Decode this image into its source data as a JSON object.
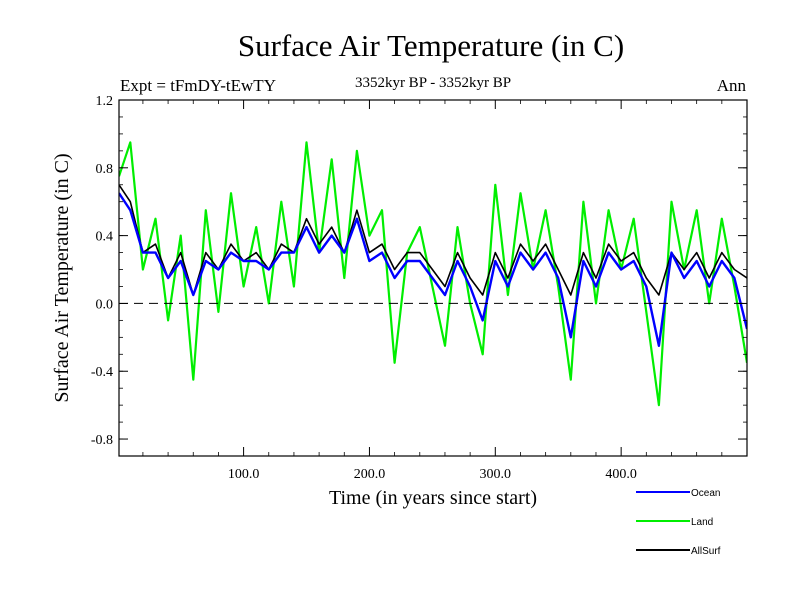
{
  "chart_data": {
    "type": "line",
    "title": "Surface Air Temperature (in C)",
    "subtitle_left": "Expt = tFmDY-tEwTY",
    "subtitle_center": "3352kyr BP - 3352kyr BP",
    "subtitle_right": "Ann",
    "xlabel": "Time (in years since start)",
    "ylabel": "Surface Air Temperature (in C)",
    "xlim": [
      1,
      500
    ],
    "ylim": [
      -0.9,
      1.2
    ],
    "x_ticks": [
      {
        "value": 100,
        "label": "100.0"
      },
      {
        "value": 200,
        "label": "200.0"
      },
      {
        "value": 300,
        "label": "300.0"
      },
      {
        "value": 400,
        "label": "400.0"
      }
    ],
    "y_ticks": [
      {
        "value": 1.2,
        "label": "1.2"
      },
      {
        "value": 0.8,
        "label": "0.8"
      },
      {
        "value": 0.4,
        "label": "0.4"
      },
      {
        "value": 0.0,
        "label": "0.0"
      },
      {
        "value": -0.4,
        "label": "-0.4"
      },
      {
        "value": -0.8,
        "label": "-0.8"
      }
    ],
    "reference_line": 0.0,
    "grid": false,
    "legend_position": "bottom-right",
    "series": [
      {
        "name": "Land",
        "color": "#00ee00",
        "x": [
          1,
          10,
          20,
          30,
          40,
          50,
          60,
          70,
          80,
          90,
          100,
          110,
          120,
          130,
          140,
          150,
          160,
          170,
          180,
          190,
          200,
          210,
          220,
          230,
          240,
          250,
          260,
          270,
          280,
          290,
          300,
          310,
          320,
          330,
          340,
          350,
          360,
          370,
          380,
          390,
          400,
          410,
          420,
          430,
          440,
          450,
          460,
          470,
          480,
          490,
          500
        ],
        "values": [
          0.75,
          0.95,
          0.2,
          0.5,
          -0.1,
          0.4,
          -0.45,
          0.55,
          -0.05,
          0.65,
          0.1,
          0.45,
          0.0,
          0.6,
          0.1,
          0.95,
          0.3,
          0.85,
          0.15,
          0.9,
          0.4,
          0.55,
          -0.35,
          0.3,
          0.45,
          0.1,
          -0.25,
          0.45,
          0.0,
          -0.3,
          0.7,
          0.05,
          0.65,
          0.2,
          0.55,
          0.1,
          -0.45,
          0.6,
          0.0,
          0.55,
          0.2,
          0.5,
          -0.05,
          -0.6,
          0.6,
          0.2,
          0.55,
          0.0,
          0.5,
          0.1,
          -0.35
        ]
      },
      {
        "name": "AllSurf",
        "color": "#000000",
        "x": [
          1,
          10,
          20,
          30,
          40,
          50,
          60,
          70,
          80,
          90,
          100,
          110,
          120,
          130,
          140,
          150,
          160,
          170,
          180,
          190,
          200,
          210,
          220,
          230,
          240,
          250,
          260,
          270,
          280,
          290,
          300,
          310,
          320,
          330,
          340,
          350,
          360,
          370,
          380,
          390,
          400,
          410,
          420,
          430,
          440,
          450,
          460,
          470,
          480,
          490,
          500
        ],
        "values": [
          0.7,
          0.6,
          0.3,
          0.35,
          0.15,
          0.3,
          0.05,
          0.3,
          0.2,
          0.35,
          0.25,
          0.3,
          0.2,
          0.35,
          0.3,
          0.5,
          0.35,
          0.45,
          0.3,
          0.55,
          0.3,
          0.35,
          0.2,
          0.3,
          0.3,
          0.2,
          0.1,
          0.3,
          0.15,
          0.05,
          0.3,
          0.15,
          0.35,
          0.25,
          0.35,
          0.2,
          0.05,
          0.3,
          0.15,
          0.35,
          0.25,
          0.3,
          0.15,
          0.05,
          0.3,
          0.2,
          0.3,
          0.15,
          0.3,
          0.2,
          0.15
        ]
      },
      {
        "name": "Ocean",
        "color": "#0000ff",
        "x": [
          1,
          10,
          20,
          30,
          40,
          50,
          60,
          70,
          80,
          90,
          100,
          110,
          120,
          130,
          140,
          150,
          160,
          170,
          180,
          190,
          200,
          210,
          220,
          230,
          240,
          250,
          260,
          270,
          280,
          290,
          300,
          310,
          320,
          330,
          340,
          350,
          360,
          370,
          380,
          390,
          400,
          410,
          420,
          430,
          440,
          450,
          460,
          470,
          480,
          490,
          500
        ],
        "values": [
          0.65,
          0.55,
          0.3,
          0.3,
          0.15,
          0.25,
          0.05,
          0.25,
          0.2,
          0.3,
          0.25,
          0.25,
          0.2,
          0.3,
          0.3,
          0.45,
          0.3,
          0.4,
          0.3,
          0.5,
          0.25,
          0.3,
          0.15,
          0.25,
          0.25,
          0.15,
          0.05,
          0.25,
          0.1,
          -0.1,
          0.25,
          0.1,
          0.3,
          0.2,
          0.3,
          0.15,
          -0.2,
          0.25,
          0.1,
          0.3,
          0.2,
          0.25,
          0.1,
          -0.25,
          0.3,
          0.15,
          0.25,
          0.1,
          0.25,
          0.15,
          -0.15
        ]
      }
    ]
  }
}
